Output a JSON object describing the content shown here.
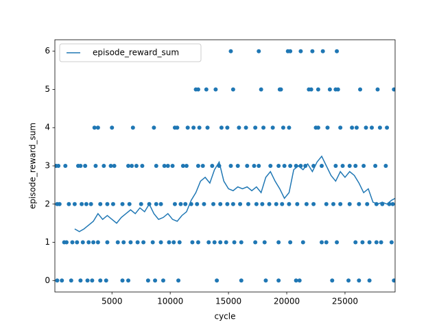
{
  "chart_data": {
    "type": "scatter",
    "xlabel": "cycle",
    "ylabel": "episode_reward_sum",
    "xlim": [
      100,
      29300
    ],
    "ylim": [
      -0.3,
      6.3
    ],
    "xticks": [
      5000,
      10000,
      15000,
      20000,
      25000
    ],
    "yticks": [
      0,
      1,
      2,
      3,
      4,
      5,
      6
    ],
    "legend": "upper left",
    "series": [
      {
        "type": "scatter",
        "color": "#1f77b4",
        "x": [
          15200,
          17600,
          20100,
          20300,
          21200,
          22200,
          23100,
          24300,
          12200,
          12400,
          13100,
          13900,
          15400,
          17800,
          19400,
          19500,
          21900,
          22100,
          22700,
          23700,
          24200,
          24400,
          26300,
          27800,
          29200,
          3500,
          3800,
          5000,
          6800,
          8600,
          10400,
          10600,
          11500,
          12000,
          12500,
          13200,
          14400,
          14900,
          15900,
          16500,
          17300,
          18000,
          18800,
          19700,
          20200,
          22500,
          22700,
          23500,
          24600,
          25600,
          26000,
          26800,
          27300,
          28000,
          28600,
          200,
          400,
          1000,
          2100,
          2300,
          2700,
          3600,
          4300,
          4900,
          5200,
          6400,
          6700,
          7100,
          7600,
          8800,
          9500,
          9800,
          10200,
          11100,
          11400,
          12400,
          12800,
          13600,
          14200,
          15200,
          15800,
          16600,
          17200,
          17600,
          18600,
          19300,
          19800,
          20300,
          20800,
          21200,
          21600,
          22300,
          23000,
          24200,
          24800,
          25400,
          25900,
          26600,
          27600,
          28500,
          300,
          500,
          1300,
          1800,
          2400,
          2800,
          3200,
          4000,
          4600,
          5100,
          5900,
          6500,
          7500,
          8200,
          8800,
          9200,
          10400,
          10900,
          11300,
          11800,
          12300,
          12900,
          13700,
          14300,
          14900,
          15400,
          16000,
          16700,
          17400,
          17900,
          18500,
          19100,
          19600,
          20200,
          20900,
          21700,
          22300,
          23400,
          24000,
          24600,
          25400,
          26200,
          26900,
          27700,
          28200,
          28800,
          29100,
          900,
          1100,
          1600,
          2000,
          2500,
          3000,
          3400,
          3800,
          4600,
          5500,
          6000,
          6600,
          7200,
          7700,
          8500,
          9200,
          9900,
          10300,
          10800,
          11900,
          12400,
          13300,
          13800,
          14300,
          14800,
          15500,
          16100,
          17300,
          18100,
          19300,
          20300,
          21400,
          23000,
          23400,
          24300,
          25900,
          26500,
          27100,
          27700,
          28100,
          29000,
          300,
          700,
          1500,
          2300,
          2900,
          3300,
          4000,
          4500,
          5900,
          6400,
          8100,
          8700,
          9400,
          10700,
          14000,
          16100,
          18200,
          19300,
          20800,
          21100,
          23900,
          25300,
          26200,
          27100,
          29200
        ],
        "values": [
          6,
          6,
          6,
          6,
          6,
          6,
          6,
          6,
          5,
          5,
          5,
          5,
          5,
          5,
          5,
          5,
          5,
          5,
          5,
          5,
          5,
          5,
          5,
          5,
          5,
          4,
          4,
          4,
          4,
          4,
          4,
          4,
          4,
          4,
          4,
          4,
          4,
          4,
          4,
          4,
          4,
          4,
          4,
          4,
          4,
          4,
          4,
          4,
          4,
          4,
          4,
          4,
          4,
          4,
          4,
          3,
          3,
          3,
          3,
          3,
          3,
          3,
          3,
          3,
          3,
          3,
          3,
          3,
          3,
          3,
          3,
          3,
          3,
          3,
          3,
          3,
          3,
          3,
          3,
          3,
          3,
          3,
          3,
          3,
          3,
          3,
          3,
          3,
          3,
          3,
          3,
          3,
          3,
          3,
          3,
          3,
          3,
          3,
          3,
          3,
          2,
          2,
          2,
          2,
          2,
          2,
          2,
          2,
          2,
          2,
          2,
          2,
          2,
          2,
          2,
          2,
          2,
          2,
          2,
          2,
          2,
          2,
          2,
          2,
          2,
          2,
          2,
          2,
          2,
          2,
          2,
          2,
          2,
          2,
          2,
          2,
          2,
          2,
          2,
          2,
          2,
          2,
          2,
          2,
          2,
          2,
          2,
          1,
          1,
          1,
          1,
          1,
          1,
          1,
          1,
          1,
          1,
          1,
          1,
          1,
          1,
          1,
          1,
          1,
          1,
          1,
          1,
          1,
          1,
          1,
          1,
          1,
          1,
          1,
          1,
          1,
          1,
          1,
          1,
          1,
          1,
          1,
          1,
          1,
          1,
          1,
          1,
          1,
          0,
          0,
          0,
          0,
          0,
          0,
          0,
          0,
          0,
          0,
          0,
          0,
          0,
          0,
          0,
          0,
          0,
          0,
          0,
          0,
          0,
          0,
          0,
          0,
          0
        ]
      },
      {
        "type": "line",
        "name": "episode_reward_sum",
        "color": "#1f77b4",
        "x": [
          1800,
          2200,
          2600,
          3000,
          3400,
          3800,
          4200,
          4600,
          5000,
          5400,
          5800,
          6200,
          6600,
          7000,
          7400,
          7800,
          8200,
          8600,
          9000,
          9400,
          9800,
          10200,
          10600,
          11000,
          11400,
          11800,
          12200,
          12600,
          13000,
          13400,
          13800,
          14200,
          14600,
          15000,
          15400,
          15800,
          16200,
          16600,
          17000,
          17400,
          17800,
          18200,
          18600,
          19000,
          19400,
          19800,
          20200,
          20600,
          21000,
          21400,
          21800,
          22200,
          22600,
          23000,
          23400,
          23800,
          24200,
          24600,
          25000,
          25400,
          25800,
          26200,
          26600,
          27000,
          27400,
          27800,
          28200,
          28600,
          29000,
          29300
        ],
        "values": [
          1.35,
          1.28,
          1.35,
          1.45,
          1.55,
          1.75,
          1.6,
          1.7,
          1.6,
          1.5,
          1.65,
          1.75,
          1.85,
          1.75,
          1.9,
          1.8,
          2.0,
          1.75,
          1.6,
          1.65,
          1.75,
          1.6,
          1.55,
          1.7,
          1.8,
          2.1,
          2.3,
          2.6,
          2.7,
          2.55,
          2.9,
          3.1,
          2.6,
          2.4,
          2.35,
          2.45,
          2.4,
          2.45,
          2.35,
          2.45,
          2.3,
          2.7,
          2.85,
          2.6,
          2.4,
          2.15,
          2.3,
          2.9,
          3.0,
          2.9,
          3.05,
          2.85,
          3.1,
          3.25,
          3.0,
          2.75,
          2.6,
          2.85,
          2.7,
          2.85,
          2.75,
          2.55,
          2.3,
          2.4,
          2.05,
          2.0,
          2.05,
          2.0,
          2.1,
          2.15
        ]
      }
    ]
  }
}
